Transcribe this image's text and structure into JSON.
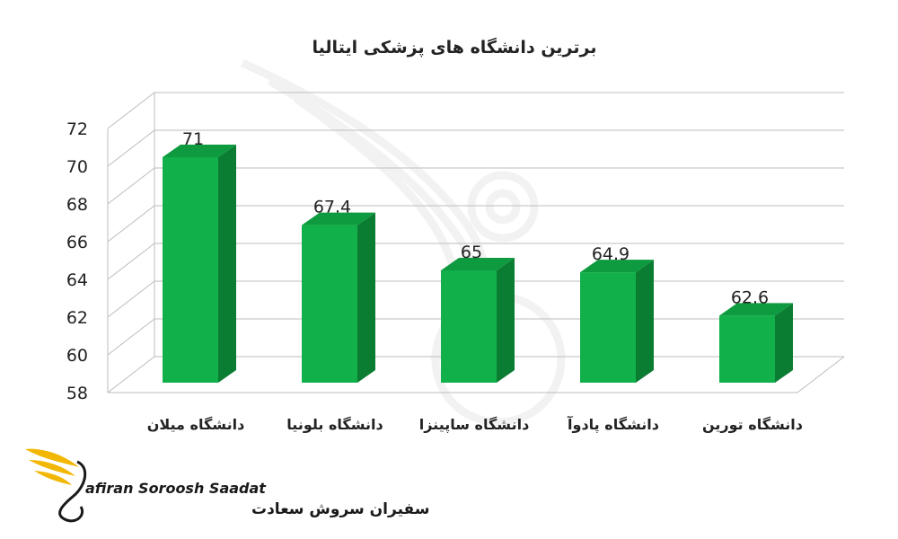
{
  "chart_data": {
    "type": "bar",
    "title": "برترین دانشگاه های پزشکی ایتالیا",
    "categories": [
      "دانشگاه میلان",
      "دانشگاه بلونیا",
      "دانشگاه ساپینزا",
      "دانشگاه پادوآ",
      "دانشگاه تورین"
    ],
    "values": [
      71,
      67.4,
      65,
      64.9,
      62.6
    ],
    "value_labels": [
      "71",
      "67.4",
      "65",
      "64.9",
      "62.6"
    ],
    "yticks": [
      "58",
      "60",
      "62",
      "64",
      "66",
      "68",
      "70",
      "72"
    ],
    "ylim": [
      58,
      72
    ],
    "grid": true,
    "legend": "none",
    "bar_color": "#12b04a",
    "bar_side_color": "#0b7d33",
    "bar_top_color": "#0e9a3f"
  },
  "watermark": {
    "brand_en": "afiran Soroosh Saadat",
    "brand_fa": "سفیران سروش سعادت",
    "wing_color": "#f2b705"
  }
}
